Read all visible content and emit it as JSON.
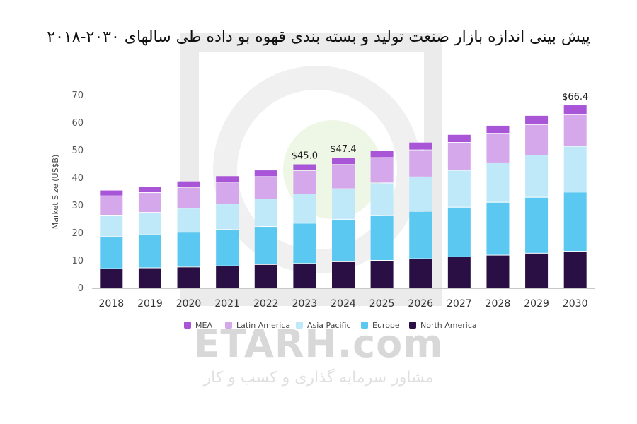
{
  "title": "پیش بینی اندازه بازار صنعت  تولید و بسته بندی قهوه بو داده طی سالهای ۲۰۳۰-۲۰۱۸",
  "watermark": {
    "main": "ETARH.com",
    "sub": "مشاور سرمایه گذاری و کسب و کار"
  },
  "chart_data": {
    "type": "bar",
    "stacked": true,
    "categories": [
      "2018",
      "2019",
      "2020",
      "2021",
      "2022",
      "2023",
      "2024",
      "2025",
      "2026",
      "2027",
      "2028",
      "2029",
      "2030"
    ],
    "ylabel": "Market Size (US$B)",
    "ylim": [
      0,
      70
    ],
    "yticks": [
      0,
      10,
      20,
      30,
      40,
      50,
      60,
      70
    ],
    "grid": false,
    "legend_position": "bottom",
    "series": [
      {
        "name": "North America",
        "color": "#2a0f45",
        "values": [
          7.0,
          7.3,
          7.6,
          8.0,
          8.5,
          8.9,
          9.5,
          10.0,
          10.6,
          11.3,
          11.9,
          12.6,
          13.3
        ]
      },
      {
        "name": "Europe",
        "color": "#5bc8f2",
        "values": [
          11.6,
          12.0,
          12.6,
          13.2,
          13.8,
          14.6,
          15.4,
          16.3,
          17.2,
          18.0,
          19.2,
          20.3,
          21.5
        ]
      },
      {
        "name": "Asia Pacific",
        "color": "#bfe9f9",
        "values": [
          7.8,
          8.1,
          8.7,
          9.3,
          10.0,
          10.6,
          11.1,
          11.8,
          12.5,
          13.4,
          14.3,
          15.3,
          16.6
        ]
      },
      {
        "name": "Latin America",
        "color": "#d5a8ec",
        "values": [
          7.0,
          7.2,
          7.6,
          7.9,
          8.1,
          8.5,
          8.8,
          9.2,
          9.8,
          10.1,
          10.7,
          11.1,
          11.5
        ]
      },
      {
        "name": "MEA",
        "color": "#a855d8",
        "values": [
          2.1,
          2.2,
          2.3,
          2.3,
          2.4,
          2.4,
          2.6,
          2.6,
          2.8,
          2.9,
          2.9,
          3.3,
          3.5
        ]
      }
    ],
    "annotations": [
      {
        "category": "2023",
        "text": "$45.0",
        "value": 45.0
      },
      {
        "category": "2024",
        "text": "$47.4",
        "value": 47.4
      },
      {
        "category": "2030",
        "text": "$66.4",
        "value": 66.4
      }
    ]
  }
}
